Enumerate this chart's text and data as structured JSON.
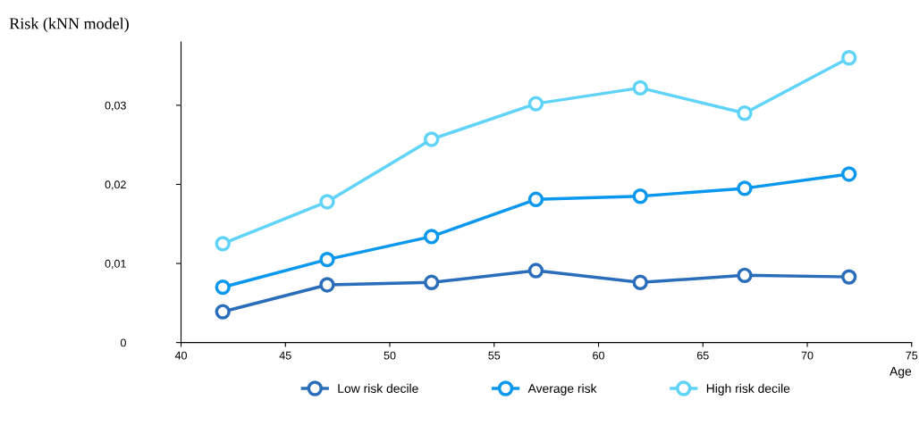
{
  "chart_data": {
    "type": "line",
    "title": "Risk (kNN model)",
    "xlabel": "Age",
    "x": [
      42,
      47,
      52,
      57,
      62,
      67,
      72
    ],
    "series": [
      {
        "name": "Low risk decile",
        "color": "#2a6ebb",
        "values": [
          0.0039,
          0.0073,
          0.0076,
          0.0091,
          0.0076,
          0.0085,
          0.0083
        ]
      },
      {
        "name": "Average risk",
        "color": "#0a98ef",
        "values": [
          0.007,
          0.0105,
          0.0134,
          0.0181,
          0.0185,
          0.0195,
          0.0213
        ]
      },
      {
        "name": "High risk decile",
        "color": "#5fd3f8",
        "values": [
          0.0125,
          0.0178,
          0.0257,
          0.0302,
          0.0322,
          0.029,
          0.036
        ]
      }
    ],
    "xlim": [
      40,
      75
    ],
    "xticks": [
      40,
      45,
      50,
      55,
      60,
      65,
      70,
      75
    ],
    "ylim": [
      0,
      0.038
    ],
    "yticks": [
      {
        "value": 0,
        "label": "0"
      },
      {
        "value": 0.01,
        "label": "0,01"
      },
      {
        "value": 0.02,
        "label": "0,02"
      },
      {
        "value": 0.03,
        "label": "0,03"
      }
    ],
    "marker": "circle",
    "line_style": "solid",
    "grid": false,
    "legend": "bottom"
  }
}
